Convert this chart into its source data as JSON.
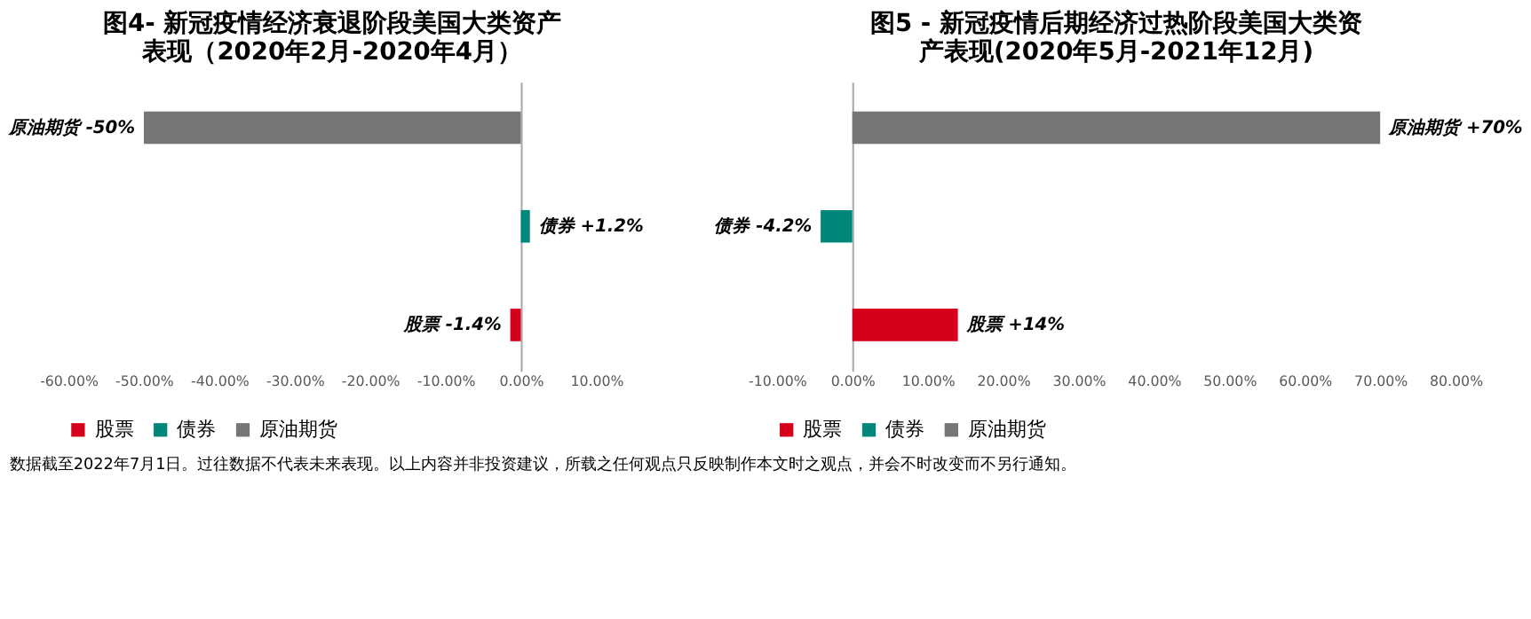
{
  "chart_data": [
    {
      "type": "bar",
      "orientation": "horizontal",
      "title": "图4- 新冠疫情经济衰退阶段美国大类资产表现（2020年2月-2020年4月）",
      "categories": [
        null,
        null,
        null
      ],
      "series": [
        {
          "name": "股票",
          "color": "#d7001b",
          "values": [
            null,
            null,
            -1.4
          ],
          "value_labels": [
            null,
            null,
            "股票 -1.4%"
          ]
        },
        {
          "name": "债券",
          "color": "#00877a",
          "values": [
            null,
            1.2,
            null
          ],
          "value_labels": [
            null,
            "债券 +1.2%",
            null
          ]
        },
        {
          "name": "原油期货",
          "color": "#767676",
          "values": [
            -50,
            null,
            null
          ],
          "value_labels": [
            "原油期货 -50%",
            null,
            null
          ]
        }
      ],
      "xlim": [
        -60,
        10
      ],
      "xticks": [
        {
          "value": -60,
          "label": "-60.00%"
        },
        {
          "value": -50,
          "label": "-50.00%"
        },
        {
          "value": -40,
          "label": "-40.00%"
        },
        {
          "value": -30,
          "label": "-30.00%"
        },
        {
          "value": -20,
          "label": "-20.00%"
        },
        {
          "value": -10,
          "label": "-10.00%"
        },
        {
          "value": 0,
          "label": "0.00%"
        },
        {
          "value": 10,
          "label": "10.00%"
        }
      ],
      "legend": "bottom"
    },
    {
      "type": "bar",
      "orientation": "horizontal",
      "title": "图5 - 新冠疫情后期经济过热阶段美国大类资产表现(2020年5月-2021年12月)",
      "categories": [
        null,
        null,
        null
      ],
      "series": [
        {
          "name": "股票",
          "color": "#d7001b",
          "values": [
            null,
            null,
            14
          ],
          "value_labels": [
            null,
            null,
            "股票 +14%"
          ]
        },
        {
          "name": "债券",
          "color": "#00877a",
          "values": [
            null,
            -4.2,
            null
          ],
          "value_labels": [
            null,
            "债券 -4.2%",
            null
          ]
        },
        {
          "name": "原油期货",
          "color": "#767676",
          "values": [
            70,
            null,
            null
          ],
          "value_labels": [
            "原油期货 +70%",
            null,
            null
          ]
        }
      ],
      "xlim": [
        -10,
        80
      ],
      "xticks": [
        {
          "value": -10,
          "label": "-10.00%"
        },
        {
          "value": 0,
          "label": "0.00%"
        },
        {
          "value": 10,
          "label": "10.00%"
        },
        {
          "value": 20,
          "label": "20.00%"
        },
        {
          "value": 30,
          "label": "30.00%"
        },
        {
          "value": 40,
          "label": "40.00%"
        },
        {
          "value": 50,
          "label": "50.00%"
        },
        {
          "value": 60,
          "label": "60.00%"
        },
        {
          "value": 70,
          "label": "70.00%"
        },
        {
          "value": 80,
          "label": "80.00%"
        }
      ],
      "legend": "bottom",
      "annotations": [
        "数据截至2022年7月1日。过往数据不代表未来表现。以上内容并非投资建议，所载之任何观点只反映制作本文时之观点，并会不时改变而不另行通知。"
      ]
    }
  ]
}
